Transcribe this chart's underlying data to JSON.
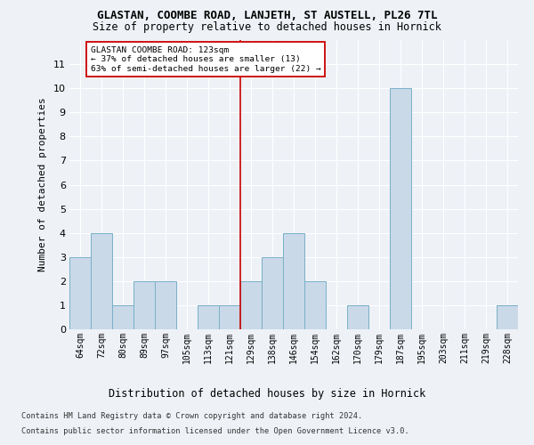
{
  "title1": "GLASTAN, COOMBE ROAD, LANJETH, ST AUSTELL, PL26 7TL",
  "title2": "Size of property relative to detached houses in Hornick",
  "xlabel": "Distribution of detached houses by size in Hornick",
  "ylabel": "Number of detached properties",
  "categories": [
    "64sqm",
    "72sqm",
    "80sqm",
    "89sqm",
    "97sqm",
    "105sqm",
    "113sqm",
    "121sqm",
    "129sqm",
    "138sqm",
    "146sqm",
    "154sqm",
    "162sqm",
    "170sqm",
    "179sqm",
    "187sqm",
    "195sqm",
    "203sqm",
    "211sqm",
    "219sqm",
    "228sqm"
  ],
  "values": [
    3,
    4,
    1,
    2,
    2,
    0,
    1,
    1,
    2,
    3,
    4,
    2,
    0,
    1,
    0,
    10,
    0,
    0,
    0,
    0,
    1
  ],
  "bar_color": "#c9d9e8",
  "bar_edge_color": "#7aafc8",
  "subject_line_color": "#cc0000",
  "annotation_title": "GLASTAN COOMBE ROAD: 123sqm",
  "annotation_line1": "← 37% of detached houses are smaller (13)",
  "annotation_line2": "63% of semi-detached houses are larger (22) →",
  "annotation_box_color": "#cc0000",
  "ylim": [
    0,
    12
  ],
  "yticks": [
    0,
    1,
    2,
    3,
    4,
    5,
    6,
    7,
    8,
    9,
    10,
    11,
    12
  ],
  "footer1": "Contains HM Land Registry data © Crown copyright and database right 2024.",
  "footer2": "Contains public sector information licensed under the Open Government Licence v3.0.",
  "bg_color": "#eef2f7",
  "plot_bg_color": "#eef2f7"
}
